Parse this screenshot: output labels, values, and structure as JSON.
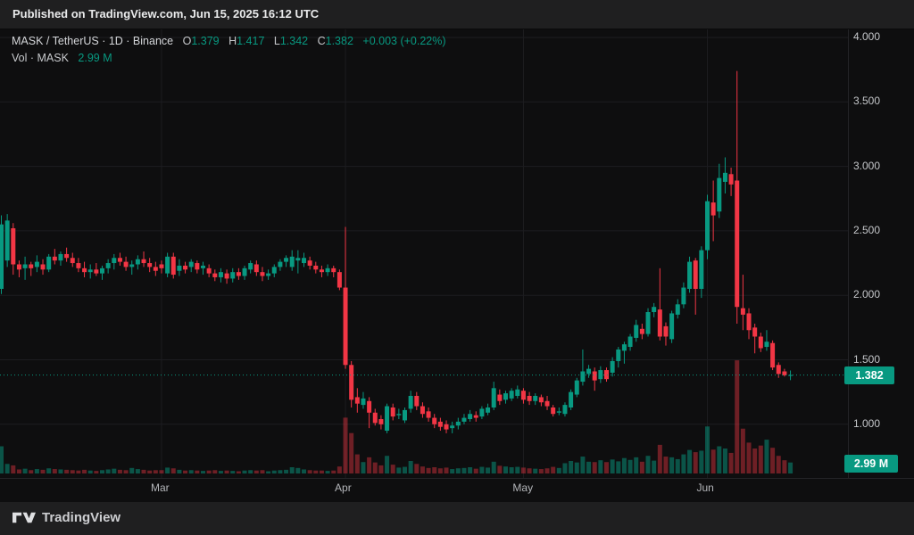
{
  "published_bar": {
    "text": "Published on TradingView.com, Jun 15, 2025 16:12 UTC"
  },
  "legend": {
    "symbol_title": "MASK / TetherUS · 1D · Binance",
    "o_label": "O",
    "o_value": "1.379",
    "h_label": "H",
    "h_value": "1.417",
    "l_label": "L",
    "l_value": "1.342",
    "c_label": "C",
    "c_value": "1.382",
    "change": "+0.003 (+0.22%)",
    "vol_label": "Vol · MASK",
    "vol_value": "2.99 M"
  },
  "price_axis": {
    "ticks": [
      "4.000",
      "3.500",
      "3.000",
      "2.500",
      "2.000",
      "1.500",
      "1.000"
    ],
    "last_price": "1.382",
    "last_volume": "2.99 M"
  },
  "time_axis": {
    "months": [
      {
        "label": "Mar",
        "index": 27
      },
      {
        "label": "Apr",
        "index": 58
      },
      {
        "label": "May",
        "index": 88
      },
      {
        "label": "Jun",
        "index": 119
      }
    ]
  },
  "footer": {
    "brand": "TradingView"
  },
  "colors": {
    "up": "#089981",
    "down": "#f23645",
    "accent_badge": "#089981",
    "grid": "#1d1d20",
    "chart_bg": "#0e0e0f",
    "panel_bg": "#1f1f20"
  },
  "chart_data": {
    "type": "candlestick",
    "title": "MASK / TetherUS · 1D · Binance",
    "symbol": "MASK/USDT",
    "interval": "1D",
    "exchange": "Binance",
    "ylabel": "Price (USDT)",
    "ylim": [
      0.85,
      4.0
    ],
    "y_gridlines": [
      4.0,
      3.5,
      3.0,
      2.5,
      2.0,
      1.5,
      1.0
    ],
    "legend_position": "top-left",
    "grid": true,
    "last_close": 1.382,
    "last_volume_m": 2.99,
    "volume_pane": true,
    "columns": [
      "date",
      "open",
      "high",
      "low",
      "close",
      "volume_millions"
    ],
    "candles": [
      [
        "Feb 2",
        2.05,
        2.62,
        2.01,
        2.55,
        7.4
      ],
      [
        "Feb 3",
        2.27,
        2.63,
        2.22,
        2.58,
        2.6
      ],
      [
        "Feb 4",
        2.52,
        2.56,
        2.16,
        2.24,
        2.2
      ],
      [
        "Feb 5",
        2.24,
        2.27,
        2.14,
        2.2,
        1.1
      ],
      [
        "Feb 6",
        2.21,
        2.3,
        2.12,
        2.24,
        1.3
      ],
      [
        "Feb 7",
        2.24,
        2.26,
        2.15,
        2.21,
        0.9
      ],
      [
        "Feb 8",
        2.22,
        2.31,
        2.18,
        2.26,
        1.2
      ],
      [
        "Feb 9",
        2.24,
        2.28,
        2.16,
        2.2,
        1.0
      ],
      [
        "Feb 10",
        2.2,
        2.32,
        2.18,
        2.3,
        1.4
      ],
      [
        "Feb 11",
        2.3,
        2.36,
        2.24,
        2.27,
        1.2
      ],
      [
        "Feb 12",
        2.27,
        2.34,
        2.23,
        2.32,
        1.1
      ],
      [
        "Feb 13",
        2.32,
        2.37,
        2.26,
        2.29,
        1.0
      ],
      [
        "Feb 14",
        2.29,
        2.33,
        2.22,
        2.25,
        0.9
      ],
      [
        "Feb 15",
        2.25,
        2.29,
        2.18,
        2.21,
        0.8
      ],
      [
        "Feb 16",
        2.21,
        2.26,
        2.14,
        2.18,
        1.0
      ],
      [
        "Feb 17",
        2.18,
        2.24,
        2.13,
        2.2,
        0.8
      ],
      [
        "Feb 18",
        2.2,
        2.25,
        2.15,
        2.17,
        0.7
      ],
      [
        "Feb 19",
        2.17,
        2.23,
        2.12,
        2.21,
        0.9
      ],
      [
        "Feb 20",
        2.21,
        2.28,
        2.17,
        2.25,
        1.1
      ],
      [
        "Feb 21",
        2.25,
        2.32,
        2.2,
        2.29,
        1.3
      ],
      [
        "Feb 22",
        2.29,
        2.33,
        2.23,
        2.26,
        1.0
      ],
      [
        "Feb 23",
        2.26,
        2.3,
        2.19,
        2.22,
        0.9
      ],
      [
        "Feb 24",
        2.22,
        2.27,
        2.16,
        2.24,
        1.5
      ],
      [
        "Feb 25",
        2.24,
        2.31,
        2.2,
        2.28,
        1.2
      ],
      [
        "Feb 26",
        2.28,
        2.34,
        2.22,
        2.25,
        1.0
      ],
      [
        "Feb 27",
        2.25,
        2.29,
        2.18,
        2.22,
        0.8
      ],
      [
        "Feb 28",
        2.22,
        2.26,
        2.15,
        2.19,
        0.9
      ],
      [
        "Mar 1",
        2.24,
        2.27,
        2.17,
        2.21,
        0.9
      ],
      [
        "Mar 2",
        2.17,
        2.33,
        2.14,
        2.3,
        1.6
      ],
      [
        "Mar 3",
        2.3,
        2.33,
        2.13,
        2.16,
        1.4
      ],
      [
        "Mar 4",
        2.19,
        2.28,
        2.15,
        2.23,
        1.0
      ],
      [
        "Mar 5",
        2.23,
        2.26,
        2.17,
        2.2,
        0.8
      ],
      [
        "Mar 6",
        2.22,
        2.28,
        2.18,
        2.26,
        0.9
      ],
      [
        "Mar 7",
        2.25,
        2.27,
        2.17,
        2.2,
        0.8
      ],
      [
        "Mar 8",
        2.21,
        2.26,
        2.16,
        2.23,
        0.7
      ],
      [
        "Mar 9",
        2.21,
        2.24,
        2.14,
        2.17,
        0.8
      ],
      [
        "Mar 10",
        2.17,
        2.2,
        2.11,
        2.14,
        0.9
      ],
      [
        "Mar 11",
        2.14,
        2.21,
        2.1,
        2.18,
        0.7
      ],
      [
        "Mar 12",
        2.17,
        2.2,
        2.09,
        2.13,
        0.8
      ],
      [
        "Mar 13",
        2.13,
        2.21,
        2.1,
        2.18,
        0.7
      ],
      [
        "Mar 14",
        2.18,
        2.21,
        2.12,
        2.15,
        0.6
      ],
      [
        "Mar 15",
        2.15,
        2.23,
        2.12,
        2.21,
        0.8
      ],
      [
        "Mar 16",
        2.2,
        2.27,
        2.17,
        2.25,
        0.9
      ],
      [
        "Mar 17",
        2.24,
        2.27,
        2.15,
        2.18,
        0.8
      ],
      [
        "Mar 18",
        2.18,
        2.22,
        2.11,
        2.15,
        0.9
      ],
      [
        "Mar 19",
        2.15,
        2.2,
        2.12,
        2.17,
        0.6
      ],
      [
        "Mar 20",
        2.17,
        2.24,
        2.14,
        2.22,
        0.8
      ],
      [
        "Mar 21",
        2.22,
        2.28,
        2.19,
        2.26,
        0.9
      ],
      [
        "Mar 22",
        2.26,
        2.31,
        2.22,
        2.29,
        1.0
      ],
      [
        "Mar 23",
        2.22,
        2.35,
        2.19,
        2.3,
        1.7
      ],
      [
        "Mar 24",
        2.27,
        2.35,
        2.17,
        2.29,
        1.5
      ],
      [
        "Mar 25",
        2.25,
        2.33,
        2.22,
        2.29,
        1.1
      ],
      [
        "Mar 26",
        2.27,
        2.3,
        2.2,
        2.23,
        0.9
      ],
      [
        "Mar 27",
        2.23,
        2.26,
        2.17,
        2.2,
        0.8
      ],
      [
        "Mar 28",
        2.2,
        2.23,
        2.14,
        2.18,
        0.8
      ],
      [
        "Mar 29",
        2.18,
        2.24,
        2.15,
        2.21,
        0.7
      ],
      [
        "Mar 30",
        2.21,
        2.23,
        2.14,
        2.18,
        0.8
      ],
      [
        "Mar 31",
        2.18,
        2.2,
        2.04,
        2.06,
        1.9
      ],
      [
        "Apr 1",
        2.06,
        2.53,
        1.43,
        1.46,
        15.2
      ],
      [
        "Apr 2",
        1.46,
        1.49,
        1.13,
        1.19,
        11.0
      ],
      [
        "Apr 3",
        1.21,
        1.28,
        1.09,
        1.16,
        5.2
      ],
      [
        "Apr 4",
        1.15,
        1.25,
        1.12,
        1.2,
        3.1
      ],
      [
        "Apr 5",
        1.18,
        1.21,
        0.97,
        1.09,
        4.4
      ],
      [
        "Apr 6",
        1.09,
        1.12,
        0.99,
        1.01,
        3.0
      ],
      [
        "Apr 7",
        1.04,
        1.07,
        0.96,
        1.0,
        2.2
      ],
      [
        "Apr 8",
        0.95,
        1.16,
        0.93,
        1.14,
        4.8
      ],
      [
        "Apr 9",
        1.13,
        1.16,
        1.03,
        1.06,
        2.4
      ],
      [
        "Apr 10",
        1.07,
        1.12,
        1.04,
        1.08,
        1.6
      ],
      [
        "Apr 11",
        1.03,
        1.13,
        1.01,
        1.11,
        1.8
      ],
      [
        "Apr 12",
        1.12,
        1.26,
        1.09,
        1.22,
        3.4
      ],
      [
        "Apr 13",
        1.22,
        1.25,
        1.11,
        1.14,
        2.6
      ],
      [
        "Apr 14",
        1.14,
        1.17,
        1.05,
        1.08,
        1.9
      ],
      [
        "Apr 15",
        1.1,
        1.13,
        1.02,
        1.05,
        1.5
      ],
      [
        "Apr 16",
        1.05,
        1.08,
        0.97,
        1.0,
        1.7
      ],
      [
        "Apr 17",
        1.02,
        1.05,
        0.95,
        0.98,
        1.4
      ],
      [
        "Apr 18",
        1.0,
        1.03,
        0.93,
        0.96,
        1.6
      ],
      [
        "Apr 19",
        0.97,
        1.02,
        0.93,
        0.99,
        1.2
      ],
      [
        "Apr 20",
        0.99,
        1.05,
        0.96,
        1.02,
        1.4
      ],
      [
        "Apr 21",
        1.02,
        1.08,
        1.0,
        1.05,
        1.5
      ],
      [
        "Apr 22",
        1.04,
        1.11,
        1.02,
        1.08,
        1.7
      ],
      [
        "Apr 23",
        1.07,
        1.1,
        1.02,
        1.05,
        1.3
      ],
      [
        "Apr 24",
        1.06,
        1.14,
        1.04,
        1.12,
        1.8
      ],
      [
        "Apr 25",
        1.09,
        1.16,
        1.07,
        1.13,
        1.6
      ],
      [
        "Apr 26",
        1.13,
        1.33,
        1.11,
        1.28,
        3.2
      ],
      [
        "Apr 27",
        1.23,
        1.27,
        1.15,
        1.18,
        2.1
      ],
      [
        "Apr 28",
        1.19,
        1.26,
        1.16,
        1.24,
        1.9
      ],
      [
        "Apr 29",
        1.2,
        1.28,
        1.18,
        1.26,
        1.7
      ],
      [
        "Apr 30",
        1.22,
        1.3,
        1.2,
        1.27,
        1.8
      ],
      [
        "May 1",
        1.26,
        1.28,
        1.16,
        1.19,
        1.6
      ],
      [
        "May 2",
        1.22,
        1.25,
        1.15,
        1.18,
        1.4
      ],
      [
        "May 3",
        1.18,
        1.24,
        1.15,
        1.22,
        1.3
      ],
      [
        "May 4",
        1.21,
        1.23,
        1.14,
        1.17,
        1.2
      ],
      [
        "May 5",
        1.18,
        1.22,
        1.11,
        1.14,
        1.4
      ],
      [
        "May 6",
        1.13,
        1.15,
        1.06,
        1.08,
        1.8
      ],
      [
        "May 7",
        1.09,
        1.13,
        1.07,
        1.1,
        1.5
      ],
      [
        "May 8",
        1.08,
        1.17,
        1.06,
        1.15,
        2.8
      ],
      [
        "May 9",
        1.13,
        1.27,
        1.11,
        1.25,
        3.4
      ],
      [
        "May 10",
        1.23,
        1.36,
        1.21,
        1.34,
        3.0
      ],
      [
        "May 11",
        1.33,
        1.58,
        1.3,
        1.41,
        4.6
      ],
      [
        "May 12",
        1.39,
        1.46,
        1.36,
        1.43,
        3.2
      ],
      [
        "May 13",
        1.41,
        1.44,
        1.26,
        1.34,
        3.1
      ],
      [
        "May 14",
        1.35,
        1.45,
        1.32,
        1.42,
        3.6
      ],
      [
        "May 15",
        1.42,
        1.44,
        1.33,
        1.35,
        3.1
      ],
      [
        "May 16",
        1.4,
        1.52,
        1.37,
        1.49,
        3.8
      ],
      [
        "May 17",
        1.49,
        1.6,
        1.44,
        1.58,
        3.3
      ],
      [
        "May 18",
        1.57,
        1.64,
        1.47,
        1.62,
        4.2
      ],
      [
        "May 19",
        1.6,
        1.7,
        1.57,
        1.68,
        3.7
      ],
      [
        "May 20",
        1.67,
        1.81,
        1.64,
        1.77,
        4.4
      ],
      [
        "May 21",
        1.74,
        1.78,
        1.66,
        1.7,
        3.2
      ],
      [
        "May 22",
        1.7,
        1.9,
        1.68,
        1.87,
        4.8
      ],
      [
        "May 23",
        1.87,
        1.94,
        1.83,
        1.91,
        3.5
      ],
      [
        "May 24",
        1.89,
        2.21,
        1.65,
        1.68,
        7.8
      ],
      [
        "May 25",
        1.76,
        1.79,
        1.61,
        1.68,
        4.6
      ],
      [
        "May 26",
        1.66,
        1.88,
        1.63,
        1.86,
        4.4
      ],
      [
        "May 27",
        1.85,
        1.97,
        1.82,
        1.93,
        3.9
      ],
      [
        "May 28",
        1.93,
        2.1,
        1.9,
        2.06,
        5.2
      ],
      [
        "May 29",
        2.05,
        2.3,
        2.02,
        2.26,
        6.4
      ],
      [
        "May 30",
        2.27,
        2.29,
        1.85,
        2.05,
        5.8
      ],
      [
        "May 31",
        2.05,
        2.38,
        1.98,
        2.35,
        6.2
      ],
      [
        "Jun 1",
        2.35,
        2.78,
        2.28,
        2.73,
        12.8
      ],
      [
        "Jun 2",
        2.72,
        2.89,
        2.42,
        2.62,
        6.5
      ],
      [
        "Jun 3",
        2.65,
        3.02,
        2.6,
        2.91,
        7.4
      ],
      [
        "Jun 4",
        2.88,
        3.07,
        2.79,
        2.95,
        6.8
      ],
      [
        "Jun 5",
        2.94,
        2.99,
        2.77,
        2.86,
        5.6
      ],
      [
        "Jun 6",
        2.89,
        3.74,
        1.78,
        1.91,
        30.8
      ],
      [
        "Jun 7",
        1.9,
        2.16,
        1.73,
        1.85,
        12.2
      ],
      [
        "Jun 8",
        1.86,
        1.9,
        1.66,
        1.73,
        8.4
      ],
      [
        "Jun 9",
        1.75,
        1.78,
        1.55,
        1.68,
        6.8
      ],
      [
        "Jun 10",
        1.68,
        1.71,
        1.56,
        1.59,
        7.6
      ],
      [
        "Jun 11",
        1.6,
        1.73,
        1.57,
        1.64,
        9.2
      ],
      [
        "Jun 12",
        1.63,
        1.65,
        1.42,
        1.44,
        7.0
      ],
      [
        "Jun 13",
        1.46,
        1.48,
        1.36,
        1.39,
        4.8
      ],
      [
        "Jun 14",
        1.41,
        1.43,
        1.37,
        1.38,
        3.6
      ],
      [
        "Jun 15",
        1.379,
        1.417,
        1.342,
        1.382,
        2.99
      ]
    ]
  }
}
